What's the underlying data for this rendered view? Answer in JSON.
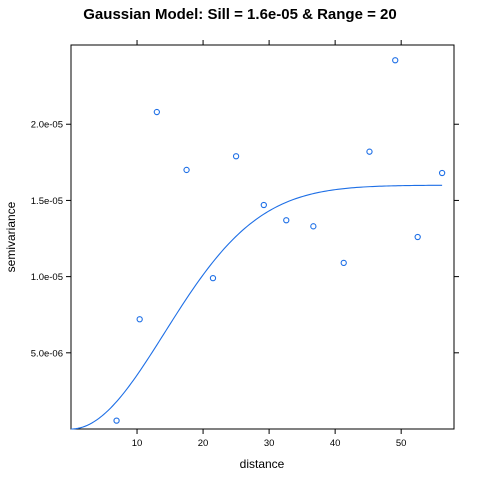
{
  "chart_data": {
    "type": "scatter",
    "title": "Gaussian Model: Sill = 1.6e-05 & Range = 20",
    "xlabel": "distance",
    "ylabel": "semivariance",
    "xlim": [
      0,
      58
    ],
    "ylim": [
      0,
      2.52e-05
    ],
    "x_ticks": [
      10,
      20,
      30,
      40,
      50
    ],
    "x_tick_labels": [
      "10",
      "20",
      "30",
      "40",
      "50"
    ],
    "y_ticks": [
      5e-06,
      1e-05,
      1.5e-05,
      2e-05
    ],
    "y_tick_labels": [
      "5.0e-06",
      "1.0e-05",
      "1.5e-05",
      "2.0e-05"
    ],
    "color": "#1E6FE6",
    "series": [
      {
        "x": [
          6.9,
          10.4,
          13.0,
          17.5,
          21.5,
          25.0,
          29.2,
          32.6,
          36.7,
          41.3,
          45.2,
          49.1,
          52.5,
          56.2
        ],
        "y": [
          5.5e-07,
          7.2e-06,
          2.08e-05,
          1.7e-05,
          9.9e-06,
          1.79e-05,
          1.47e-05,
          1.37e-05,
          1.33e-05,
          1.09e-05,
          1.82e-05,
          2.42e-05,
          1.26e-05,
          1.68e-05
        ]
      }
    ],
    "model": {
      "type": "gaussian",
      "sill": 1.6e-05,
      "range": 20,
      "x_max": 56.2
    }
  }
}
